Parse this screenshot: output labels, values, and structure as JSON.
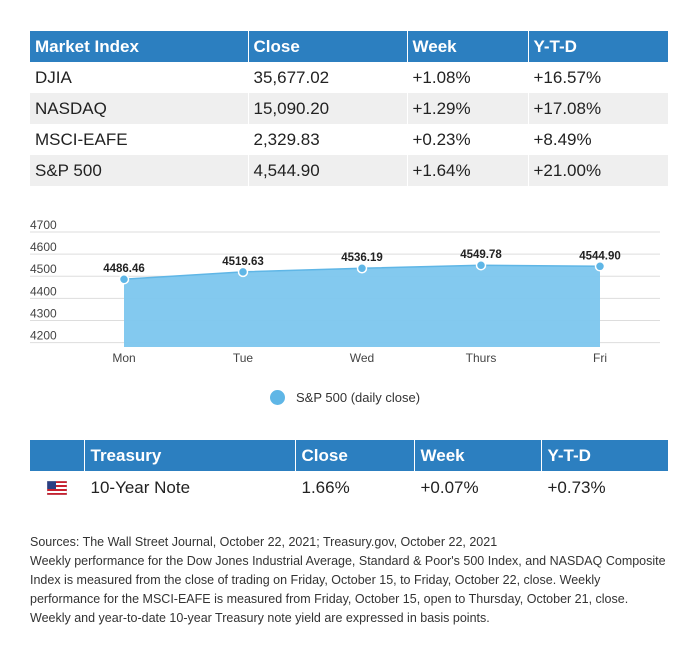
{
  "market_table": {
    "headers": [
      "Market Index",
      "Close",
      "Week",
      "Y-T-D"
    ],
    "rows": [
      [
        "DJIA",
        "35,677.02",
        "+1.08%",
        "+16.57%"
      ],
      [
        "NASDAQ",
        "15,090.20",
        "+1.29%",
        "+17.08%"
      ],
      [
        "MSCI-EAFE",
        "2,329.83",
        "+0.23%",
        "+8.49%"
      ],
      [
        "S&P 500",
        "4,544.90",
        "+1.64%",
        "+21.00%"
      ]
    ]
  },
  "chart_data": {
    "type": "area",
    "categories": [
      "Mon",
      "Tue",
      "Wed",
      "Thurs",
      "Fri"
    ],
    "series": [
      {
        "name": "S&P 500 (daily close)",
        "values": [
          4486.46,
          4519.63,
          4536.19,
          4549.78,
          4544.9
        ],
        "labels": [
          "4486.46",
          "4519.63",
          "4536.19",
          "4549.78",
          "4544.90"
        ]
      }
    ],
    "yticks": [
      4200,
      4300,
      4400,
      4500,
      4600,
      4700
    ],
    "ylim": [
      4180,
      4700
    ],
    "colors": {
      "fill": "#7cc6ee",
      "line": "#5fb6e6",
      "point": "#5fb6e6"
    },
    "grid": true,
    "legend_position": "bottom-center"
  },
  "legend": {
    "label": "S&P 500 (daily close)"
  },
  "treasury_table": {
    "headers": [
      "",
      "Treasury",
      "Close",
      "Week",
      "Y-T-D"
    ],
    "row": {
      "flag_icon": "us-flag-icon",
      "name": "10-Year Note",
      "close": "1.66%",
      "week": "+0.07%",
      "ytd": "+0.73%"
    }
  },
  "notes": {
    "sources": "Sources: The Wall Street Journal, October 22, 2021; Treasury.gov, October 22, 2021",
    "body": "Weekly performance for the Dow Jones Industrial Average, Standard & Poor's 500 Index, and NASDAQ Composite Index is measured from the close of trading on Friday, October 15, to Friday, October 22, close. Weekly performance for the MSCI-EAFE is measured from Friday, October 15, open to Thursday, October 21, close. Weekly and year-to-date 10-year Treasury note yield are expressed in basis points."
  },
  "theme": {
    "header_blue": "#2c7fc0",
    "stripe_gray": "#efefef"
  }
}
